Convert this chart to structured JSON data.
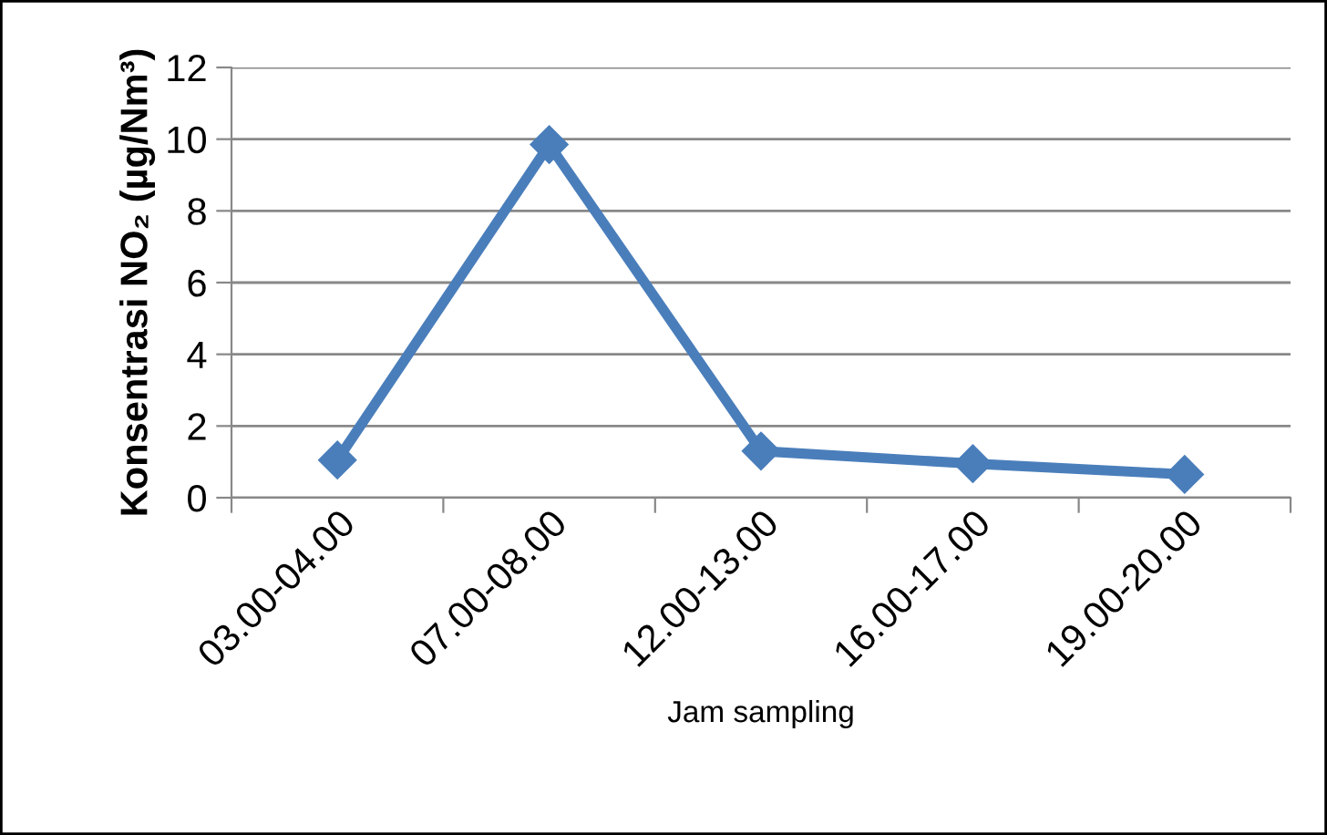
{
  "chart_data": {
    "type": "line",
    "xlabel": "Jam sampling",
    "ylabel": "Konsentrasi NO₂ (µg/Nm³)",
    "categories": [
      "03.00-04.00",
      "07.00-08.00",
      "12.00-13.00",
      "16.00-17.00",
      "19.00-20.00"
    ],
    "series": [
      {
        "color": "#4a7ebb",
        "values": [
          1.05,
          9.85,
          1.3,
          0.95,
          0.65
        ]
      }
    ],
    "ylim": [
      0,
      12
    ],
    "yticks": [
      0,
      2,
      4,
      6,
      8,
      10,
      12
    ],
    "grid": "y",
    "marker": "diamond",
    "line_style": "solid"
  }
}
